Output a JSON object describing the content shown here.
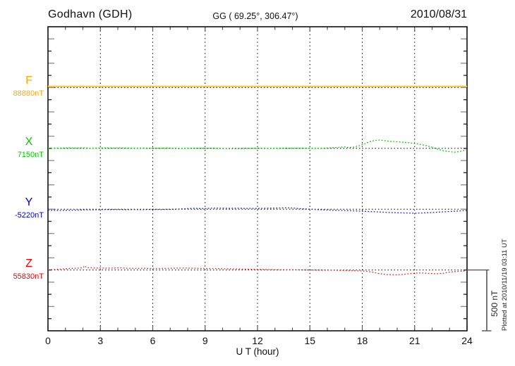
{
  "header": {
    "station": "Godhavn (GDH)",
    "coordinates": "GG ( 69.25°, 306.47°)",
    "date": "2010/08/31"
  },
  "footer": {
    "plotted_at": "Plotted at 2010/11/19 03:11 UT"
  },
  "chart_data": {
    "type": "line",
    "title": "Godhavn (GDH) magnetogram 2010/08/31",
    "xlabel": "U T (hour)",
    "x_range": [
      0,
      24
    ],
    "x_major_ticks": [
      0,
      3,
      6,
      9,
      12,
      15,
      18,
      21,
      24
    ],
    "x_minor_tick_step_hours": 1,
    "grid": "vertical dotted lines at 3-hour intervals; dotted horizontal baseline per trace",
    "legend_position": "left margin, one colored letter + baseline value per trace",
    "scale_bar": {
      "label": "500 nT",
      "nT": 500
    },
    "row_separation_nT": 500,
    "series": [
      {
        "name": "F",
        "label": "F",
        "value_label": "88880nT",
        "baseline_nT": 88880,
        "color": "#FFAA00",
        "trace_color": "#FFC22D",
        "line_style": "solid",
        "points_hour_offset_nT": [
          [
            0,
            10
          ],
          [
            24,
            10
          ]
        ]
      },
      {
        "name": "X",
        "label": "X",
        "value_label": "7150nT",
        "baseline_nT": 7150,
        "color": "#00CC00",
        "trace_color": "#00CC00",
        "line_style": "dotted",
        "points_hour_offset_nT": [
          [
            0,
            2
          ],
          [
            0.4,
            3
          ],
          [
            0.8,
            2
          ],
          [
            1.2,
            4
          ],
          [
            1.6,
            3
          ],
          [
            2,
            4
          ],
          [
            2.4,
            2
          ],
          [
            2.8,
            3
          ],
          [
            3.2,
            4
          ],
          [
            3.6,
            3
          ],
          [
            4,
            4
          ],
          [
            4.4,
            3
          ],
          [
            4.8,
            2
          ],
          [
            5.2,
            3
          ],
          [
            5.6,
            2
          ],
          [
            6,
            1
          ],
          [
            6.4,
            2
          ],
          [
            6.8,
            3
          ],
          [
            7.2,
            1
          ],
          [
            7.5,
            -3
          ],
          [
            7.8,
            1
          ],
          [
            8.2,
            2
          ],
          [
            8.6,
            1
          ],
          [
            9,
            0
          ],
          [
            9.4,
            1
          ],
          [
            9.8,
            -1
          ],
          [
            10.2,
            -2
          ],
          [
            10.6,
            -3
          ],
          [
            11,
            -2
          ],
          [
            11.4,
            -1
          ],
          [
            11.8,
            0
          ],
          [
            12.2,
            1
          ],
          [
            12.6,
            0
          ],
          [
            13,
            1
          ],
          [
            13.4,
            2
          ],
          [
            13.8,
            1
          ],
          [
            14.2,
            2
          ],
          [
            14.6,
            1
          ],
          [
            15,
            2
          ],
          [
            15.4,
            1
          ],
          [
            15.8,
            2
          ],
          [
            16.2,
            4
          ],
          [
            16.6,
            8
          ],
          [
            17,
            12
          ],
          [
            17.2,
            7
          ],
          [
            17.5,
            10
          ],
          [
            17.8,
            20
          ],
          [
            18.1,
            35
          ],
          [
            18.4,
            55
          ],
          [
            18.7,
            65
          ],
          [
            19,
            68
          ],
          [
            19.3,
            63
          ],
          [
            19.6,
            58
          ],
          [
            20,
            55
          ],
          [
            20.4,
            50
          ],
          [
            20.8,
            44
          ],
          [
            21.2,
            36
          ],
          [
            21.6,
            25
          ],
          [
            22,
            10
          ],
          [
            22.3,
            -6
          ],
          [
            22.6,
            -18
          ],
          [
            23,
            -27
          ],
          [
            23.3,
            -31
          ],
          [
            23.6,
            -26
          ],
          [
            23.8,
            -18
          ],
          [
            24,
            -12
          ]
        ]
      },
      {
        "name": "Y",
        "label": "Y",
        "value_label": "-5220nT",
        "baseline_nT": -5220,
        "color": "#0000CC",
        "trace_color": "#2222CC",
        "line_style": "dotted",
        "points_hour_offset_nT": [
          [
            0,
            -8
          ],
          [
            0.3,
            -9
          ],
          [
            0.6,
            -11
          ],
          [
            1,
            -9
          ],
          [
            1.5,
            -8
          ],
          [
            2,
            -6
          ],
          [
            2.5,
            -5
          ],
          [
            3,
            -4
          ],
          [
            3.5,
            -3
          ],
          [
            4,
            -3
          ],
          [
            4.5,
            -4
          ],
          [
            5,
            -3
          ],
          [
            5.5,
            -4
          ],
          [
            6,
            -2
          ],
          [
            6.5,
            -3
          ],
          [
            7,
            -2
          ],
          [
            7.5,
            1
          ],
          [
            8,
            5
          ],
          [
            8.3,
            7
          ],
          [
            8.6,
            6
          ],
          [
            9,
            5
          ],
          [
            9.3,
            8
          ],
          [
            9.6,
            9
          ],
          [
            10,
            8
          ],
          [
            10.5,
            7
          ],
          [
            11,
            8
          ],
          [
            11.3,
            6
          ],
          [
            11.6,
            7
          ],
          [
            12,
            6
          ],
          [
            12.5,
            8
          ],
          [
            13,
            9
          ],
          [
            13.3,
            10
          ],
          [
            13.6,
            11
          ],
          [
            14,
            9
          ],
          [
            14.3,
            6
          ],
          [
            14.6,
            3
          ],
          [
            15,
            0
          ],
          [
            15.5,
            -4
          ],
          [
            16,
            -7
          ],
          [
            16.5,
            -9
          ],
          [
            17,
            -11
          ],
          [
            17.5,
            -14
          ],
          [
            18,
            -17
          ],
          [
            18.5,
            -20
          ],
          [
            19,
            -23
          ],
          [
            19.5,
            -27
          ],
          [
            20,
            -29
          ],
          [
            20.5,
            -31
          ],
          [
            21,
            -33
          ],
          [
            21.3,
            -32
          ],
          [
            21.6,
            -30
          ],
          [
            22,
            -27
          ],
          [
            22.5,
            -23
          ],
          [
            23,
            -19
          ],
          [
            23.5,
            -15
          ],
          [
            23.8,
            -12
          ],
          [
            24,
            -10
          ]
        ]
      },
      {
        "name": "Z",
        "label": "Z",
        "value_label": "55830nT",
        "baseline_nT": 55830,
        "color": "#EE0000",
        "trace_color": "#E03030",
        "line_style": "dotted",
        "points_hour_offset_nT": [
          [
            0,
            2
          ],
          [
            0.4,
            4
          ],
          [
            0.8,
            8
          ],
          [
            1.2,
            12
          ],
          [
            1.6,
            14
          ],
          [
            2,
            18
          ],
          [
            2.1,
            35
          ],
          [
            2.2,
            20
          ],
          [
            2.6,
            16
          ],
          [
            3,
            16
          ],
          [
            3.4,
            15
          ],
          [
            3.8,
            16
          ],
          [
            4.2,
            18
          ],
          [
            4.6,
            14
          ],
          [
            5,
            13
          ],
          [
            5.4,
            14
          ],
          [
            5.8,
            13
          ],
          [
            6.2,
            12
          ],
          [
            6.6,
            13
          ],
          [
            7,
            14
          ],
          [
            7.4,
            15
          ],
          [
            7.8,
            16
          ],
          [
            8.2,
            15
          ],
          [
            8.6,
            14
          ],
          [
            9,
            13
          ],
          [
            9.4,
            12
          ],
          [
            9.8,
            11
          ],
          [
            10.2,
            10
          ],
          [
            10.6,
            9
          ],
          [
            11,
            8
          ],
          [
            11.4,
            7
          ],
          [
            11.8,
            6
          ],
          [
            12.2,
            5
          ],
          [
            12.6,
            4
          ],
          [
            13,
            3
          ],
          [
            13.4,
            2
          ],
          [
            13.8,
            3
          ],
          [
            14.2,
            2
          ],
          [
            14.6,
            1
          ],
          [
            15,
            0
          ],
          [
            15.4,
            -1
          ],
          [
            15.8,
            -2
          ],
          [
            16.2,
            -2
          ],
          [
            16.6,
            -3
          ],
          [
            17,
            -4
          ],
          [
            17.4,
            -5
          ],
          [
            17.8,
            -7
          ],
          [
            18.2,
            -10
          ],
          [
            18.6,
            -18
          ],
          [
            19,
            -30
          ],
          [
            19.4,
            -37
          ],
          [
            19.8,
            -40
          ],
          [
            20.2,
            -38
          ],
          [
            20.6,
            -32
          ],
          [
            21,
            -26
          ],
          [
            21.4,
            -24
          ],
          [
            21.8,
            -28
          ],
          [
            22.2,
            -31
          ],
          [
            22.6,
            -28
          ],
          [
            23,
            -17
          ],
          [
            23.4,
            -12
          ],
          [
            23.8,
            -9
          ],
          [
            24,
            -7
          ]
        ]
      }
    ]
  },
  "colors": {
    "background": "#FFFFFF",
    "frame": "#111111",
    "grid": "#000000",
    "minor_tick": "#555555",
    "long_tick": "#888888",
    "text": "#111111"
  }
}
